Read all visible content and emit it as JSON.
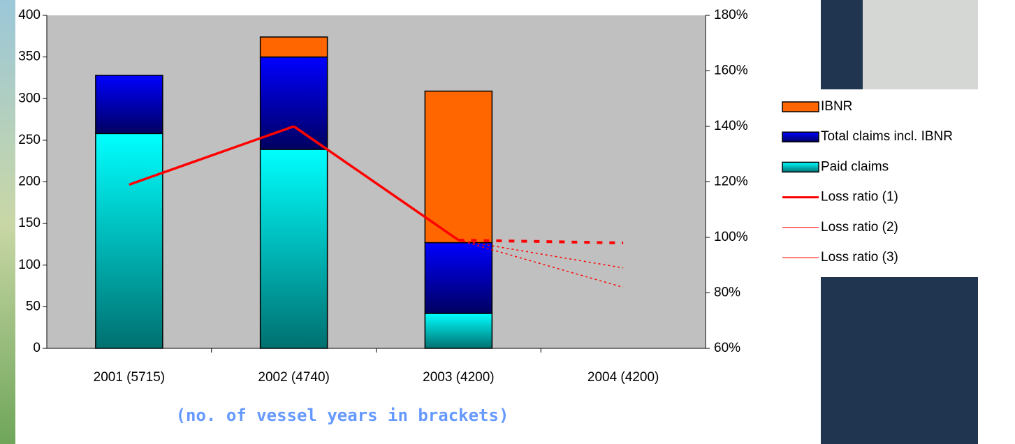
{
  "chart_data": {
    "type": "bar",
    "stacked": true,
    "subtitle": "(no. of vessel years in brackets)",
    "categories": [
      "2001 (5715)",
      "2002 (4740)",
      "2003 (4200)",
      "2004 (4200)"
    ],
    "series": [
      {
        "name": "Paid claims",
        "type": "bar",
        "color": "#00ffff",
        "values": [
          258,
          239,
          42,
          null
        ]
      },
      {
        "name": "Total claims incl. IBNR",
        "type": "bar",
        "color": "#0000ee",
        "values": [
          70,
          111,
          85,
          null
        ]
      },
      {
        "name": "IBNR",
        "type": "bar",
        "color": "#ff6600",
        "values": [
          0,
          24,
          182,
          null
        ]
      },
      {
        "name": "Loss ratio (1)",
        "type": "line",
        "axis": "y2",
        "color": "#ff0000",
        "line_width": 3,
        "values": [
          119,
          140,
          99,
          98
        ]
      },
      {
        "name": "Loss ratio (2)",
        "type": "line",
        "axis": "y2",
        "color": "#ff0000",
        "line_width": 1,
        "values": [
          null,
          null,
          99,
          89
        ]
      },
      {
        "name": "Loss ratio (3)",
        "type": "line",
        "axis": "y2",
        "color": "#ff0000",
        "line_width": 1,
        "values": [
          null,
          null,
          99,
          82
        ]
      }
    ],
    "ylim": [
      0,
      400
    ],
    "yticks": [
      0,
      50,
      100,
      150,
      200,
      250,
      300,
      350,
      400
    ],
    "y2lim": [
      60,
      180
    ],
    "y2ticks": [
      {
        "value": 60,
        "label": "60%"
      },
      {
        "value": 80,
        "label": "80%"
      },
      {
        "value": 100,
        "label": "100%"
      },
      {
        "value": 120,
        "label": "120%"
      },
      {
        "value": 140,
        "label": "140%"
      },
      {
        "value": 160,
        "label": "160%"
      },
      {
        "value": 180,
        "label": "180%"
      }
    ],
    "plot_background": "#c0c0c0",
    "legend": "right"
  }
}
